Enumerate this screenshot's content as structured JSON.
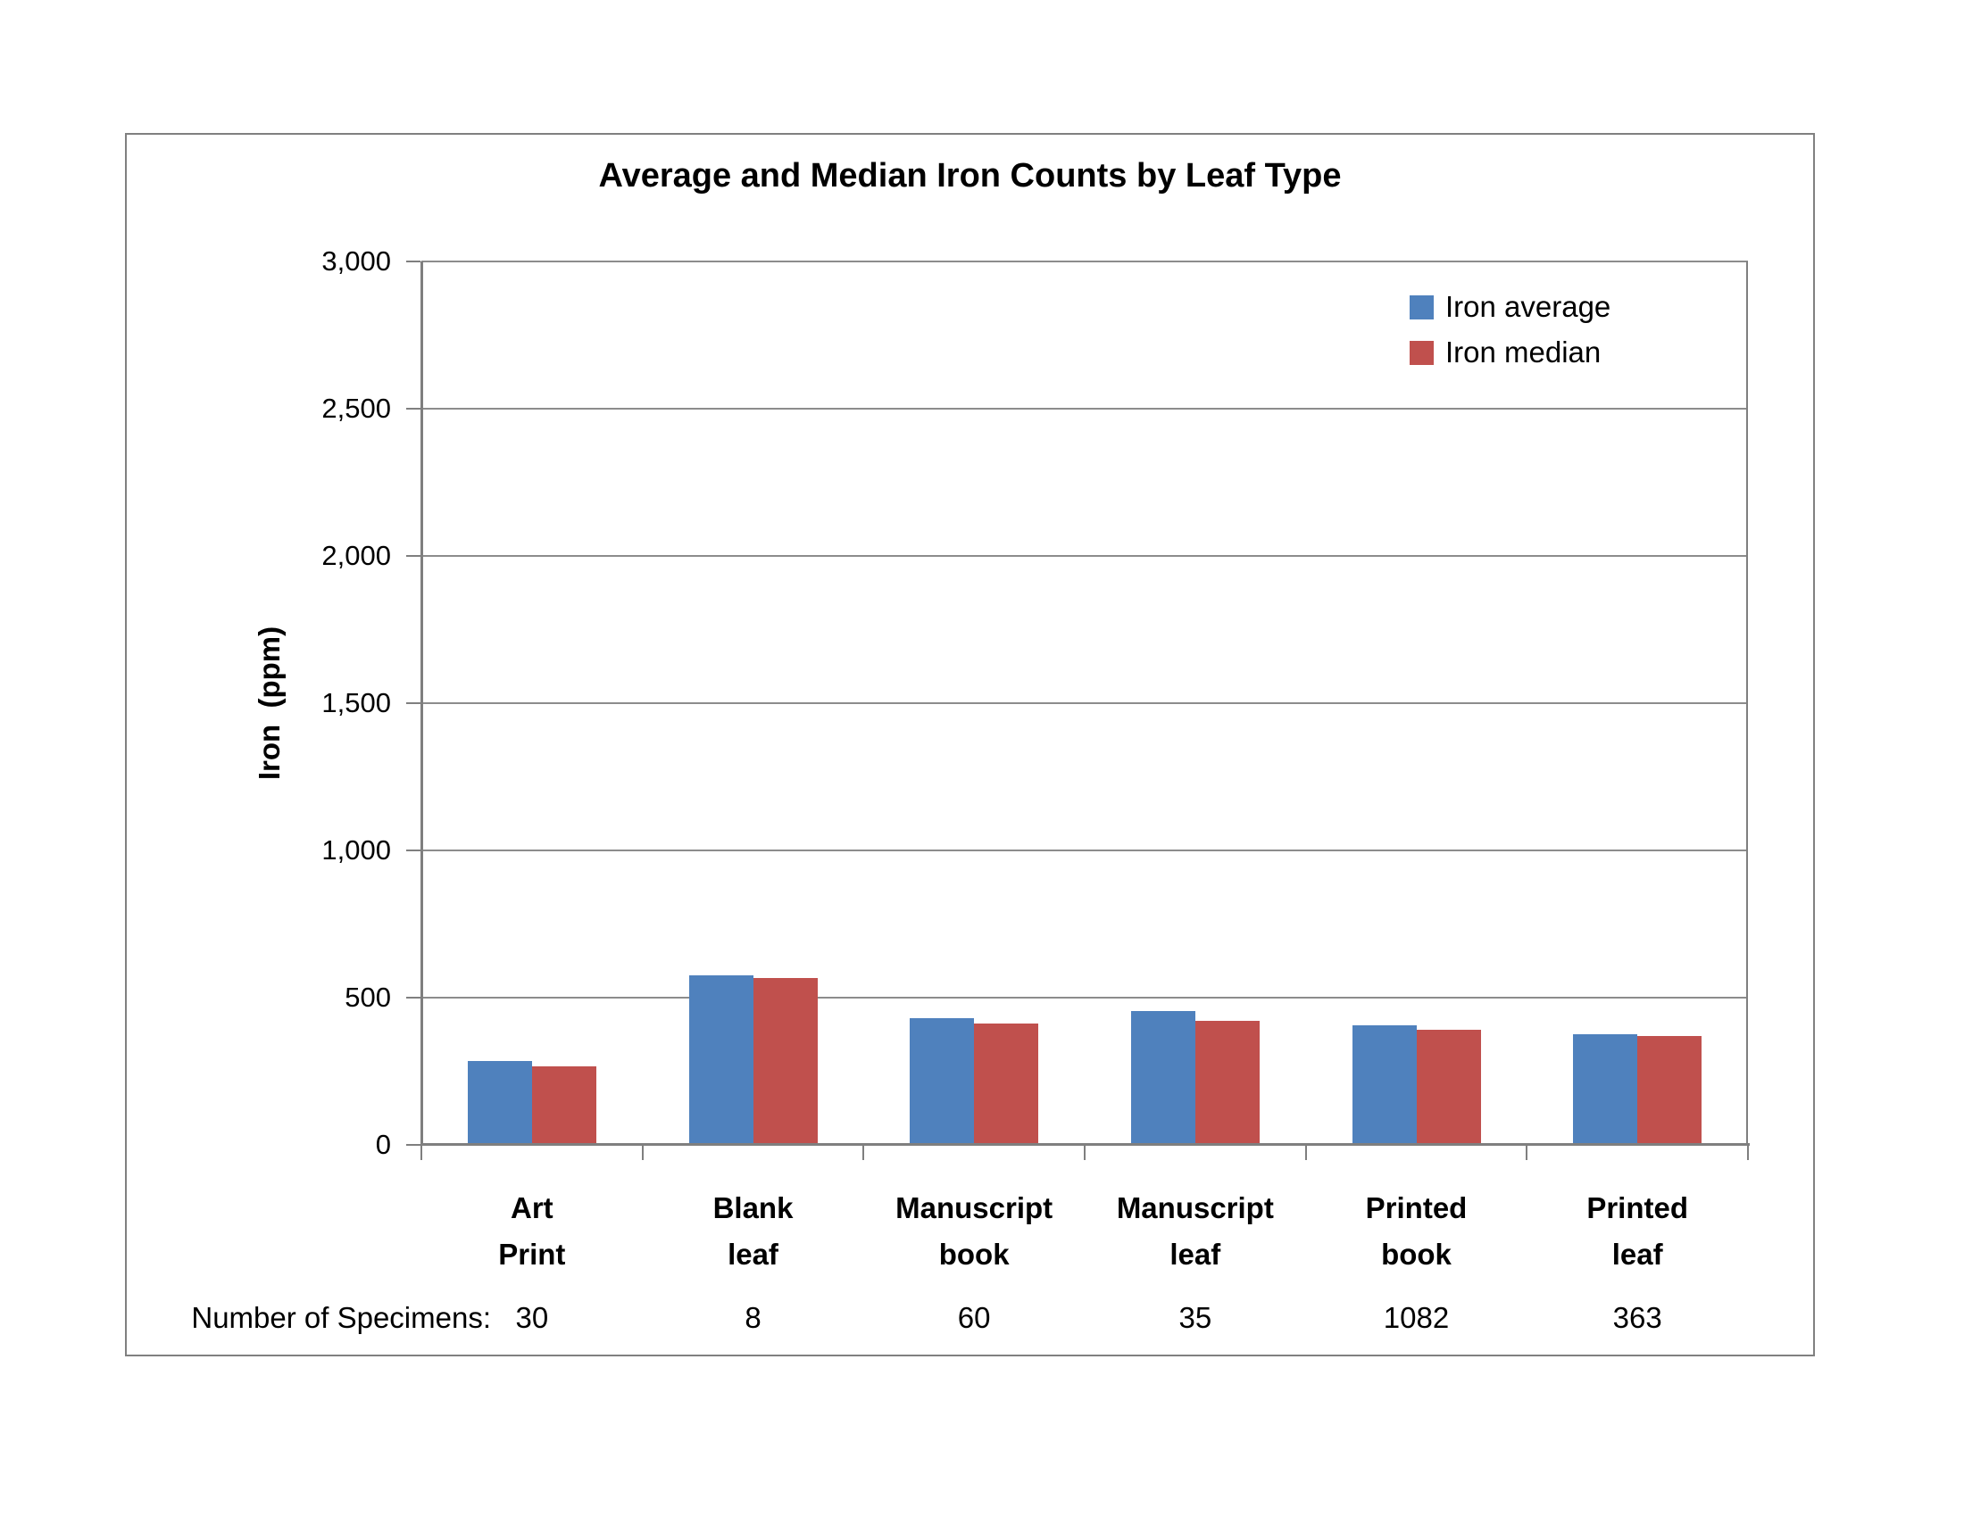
{
  "page": {
    "background": "#FFFFFF"
  },
  "chart_data": {
    "type": "bar",
    "title": "Average and Median Iron Counts by Leaf Type",
    "ylabel": "Iron  (ppm)",
    "xlabel": "",
    "ylim": [
      0,
      3000
    ],
    "ytick_step": 500,
    "ytick_labels": [
      "0",
      "500",
      "1,000",
      "1,500",
      "2,000",
      "2,500",
      "3,000"
    ],
    "grid": true,
    "legend_position": "top-right",
    "categories": [
      "Art Print",
      "Blank leaf",
      "Manuscript book",
      "Manuscript leaf",
      "Printed book",
      "Printed leaf"
    ],
    "category_lines": [
      [
        "Art",
        "Print"
      ],
      [
        "Blank",
        "leaf"
      ],
      [
        "Manuscript",
        "book"
      ],
      [
        "Manuscript",
        "leaf"
      ],
      [
        "Printed",
        "book"
      ],
      [
        "Printed",
        "leaf"
      ]
    ],
    "series": [
      {
        "name": "Iron average",
        "color": "#4F81BD",
        "values": [
          280,
          570,
          425,
          450,
          400,
          370
        ]
      },
      {
        "name": "Iron median",
        "color": "#C0504D",
        "values": [
          260,
          560,
          405,
          415,
          385,
          365
        ]
      }
    ],
    "specimens": {
      "label": "Number of Specimens:",
      "values": [
        30,
        8,
        60,
        35,
        1082,
        363
      ]
    },
    "colors": {
      "axis": "#7F7F7F",
      "gridline": "#8C8C8C",
      "frame_border": "#808080",
      "text": "#000000"
    }
  }
}
